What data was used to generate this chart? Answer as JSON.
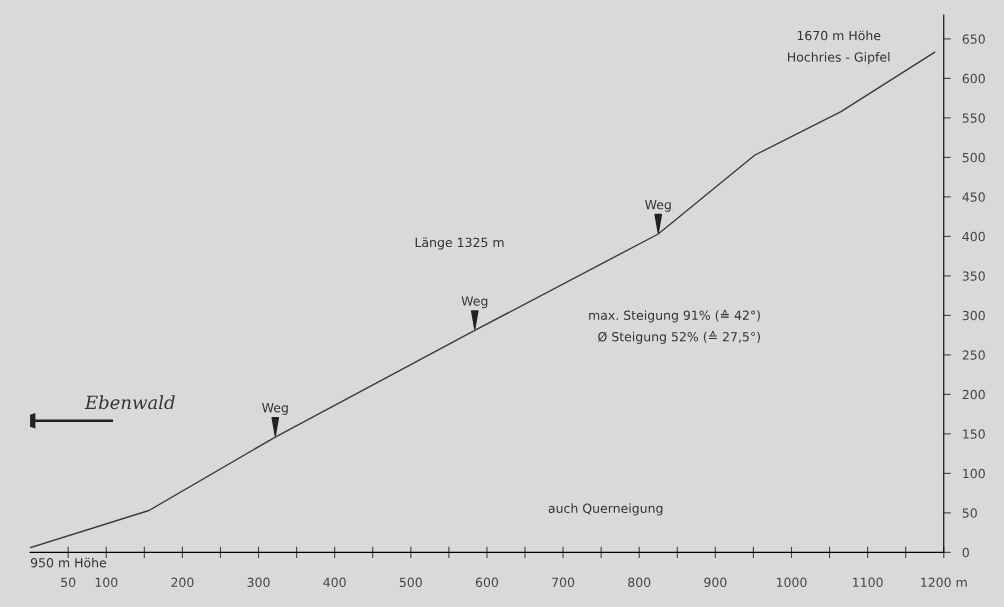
{
  "chart_data": {
    "type": "line",
    "x": [
      0,
      156,
      322,
      584,
      825,
      952,
      1065,
      1188
    ],
    "series": [
      {
        "color": "#3a3a3a",
        "values": [
          6,
          53,
          146,
          281,
          403,
          503,
          558,
          633
        ]
      }
    ],
    "xlim": [
      0,
      1200
    ],
    "xticks": [
      {
        "value": 50,
        "label": "50"
      },
      {
        "value": 100,
        "label": "100"
      },
      {
        "value": 150,
        "label": null
      },
      {
        "value": 200,
        "label": "200"
      },
      {
        "value": 250,
        "label": null
      },
      {
        "value": 300,
        "label": "300"
      },
      {
        "value": 350,
        "label": null
      },
      {
        "value": 400,
        "label": "400"
      },
      {
        "value": 450,
        "label": null
      },
      {
        "value": 500,
        "label": "500"
      },
      {
        "value": 550,
        "label": null
      },
      {
        "value": 600,
        "label": "600"
      },
      {
        "value": 650,
        "label": null
      },
      {
        "value": 700,
        "label": "700"
      },
      {
        "value": 750,
        "label": null
      },
      {
        "value": 800,
        "label": "800"
      },
      {
        "value": 850,
        "label": null
      },
      {
        "value": 900,
        "label": "900"
      },
      {
        "value": 950,
        "label": null
      },
      {
        "value": 1000,
        "label": "1000"
      },
      {
        "value": 1050,
        "label": null
      },
      {
        "value": 1100,
        "label": "1100"
      },
      {
        "value": 1150,
        "label": null
      },
      {
        "value": 1200,
        "label": "1200 m"
      }
    ],
    "ylim": [
      0,
      680
    ],
    "yticks": [
      0,
      50,
      100,
      150,
      200,
      250,
      300,
      350,
      400,
      450,
      500,
      550,
      600,
      650
    ],
    "grid": false,
    "legend": false,
    "marker": "none",
    "line_style": "solid",
    "annotations": [
      {
        "text": "Weg",
        "x": 322,
        "y": 146
      },
      {
        "text": "Weg",
        "x": 584,
        "y": 281
      },
      {
        "text": "Weg",
        "x": 825,
        "y": 403
      },
      "1670 m Höhe",
      "Hochries - Gipfel",
      "Länge 1325 m",
      "max. Steigung 91% (≙ 42°)",
      "Ø Steigung 52% (≙ 27,5°)",
      "auch Querneigung",
      "950 m Höhe",
      "Ebenwald"
    ]
  }
}
